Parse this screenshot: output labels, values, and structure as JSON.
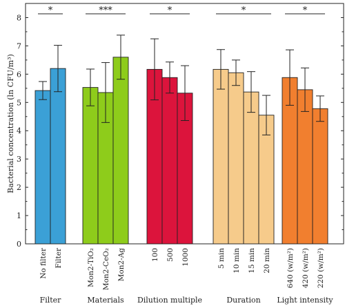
{
  "chart_data": {
    "type": "bar",
    "ylabel": "Bacterial concentration (ln CFU/m³)",
    "ylim": [
      0,
      8.5
    ],
    "yticks": [
      0,
      1,
      2,
      3,
      4,
      5,
      6,
      7,
      8
    ],
    "grid": false,
    "groups": [
      {
        "name": "Filter",
        "color": "#3ba0d6",
        "significance": "*",
        "bars": [
          {
            "category": "No filter",
            "value": 5.42,
            "error": 0.32
          },
          {
            "category": "Filter",
            "value": 6.2,
            "error": 0.82
          }
        ]
      },
      {
        "name": "Materials",
        "color": "#8ecc1b",
        "significance": "***",
        "bars": [
          {
            "category": "Mon2-TiO₂",
            "value": 5.53,
            "error": 0.65
          },
          {
            "category": "Mon2-CeO₂",
            "value": 5.35,
            "error": 1.06
          },
          {
            "category": "Mon2-Ag",
            "value": 6.6,
            "error": 0.78
          }
        ]
      },
      {
        "name": "Dilution multiple",
        "color": "#dc143c",
        "significance": "*",
        "bars": [
          {
            "category": "100",
            "value": 6.17,
            "error": 1.08
          },
          {
            "category": "500",
            "value": 5.88,
            "error": 0.55
          },
          {
            "category": "1000",
            "value": 5.33,
            "error": 0.97
          }
        ]
      },
      {
        "name": "Duration",
        "color": "#f6cb8b",
        "significance": "*",
        "bars": [
          {
            "category": "5 min",
            "value": 6.17,
            "error": 0.7
          },
          {
            "category": "10 min",
            "value": 6.05,
            "error": 0.45
          },
          {
            "category": "15 min",
            "value": 5.37,
            "error": 0.72
          },
          {
            "category": "20 min",
            "value": 4.55,
            "error": 0.7
          }
        ]
      },
      {
        "name": "Light intensity",
        "color": "#f17f2f",
        "significance": "*",
        "bars": [
          {
            "category": "640 (w/m²)",
            "value": 5.88,
            "error": 0.98
          },
          {
            "category": "420 (w/m²)",
            "value": 5.45,
            "error": 0.77
          },
          {
            "category": "220 (w/m²)",
            "value": 4.78,
            "error": 0.45
          }
        ]
      }
    ]
  }
}
